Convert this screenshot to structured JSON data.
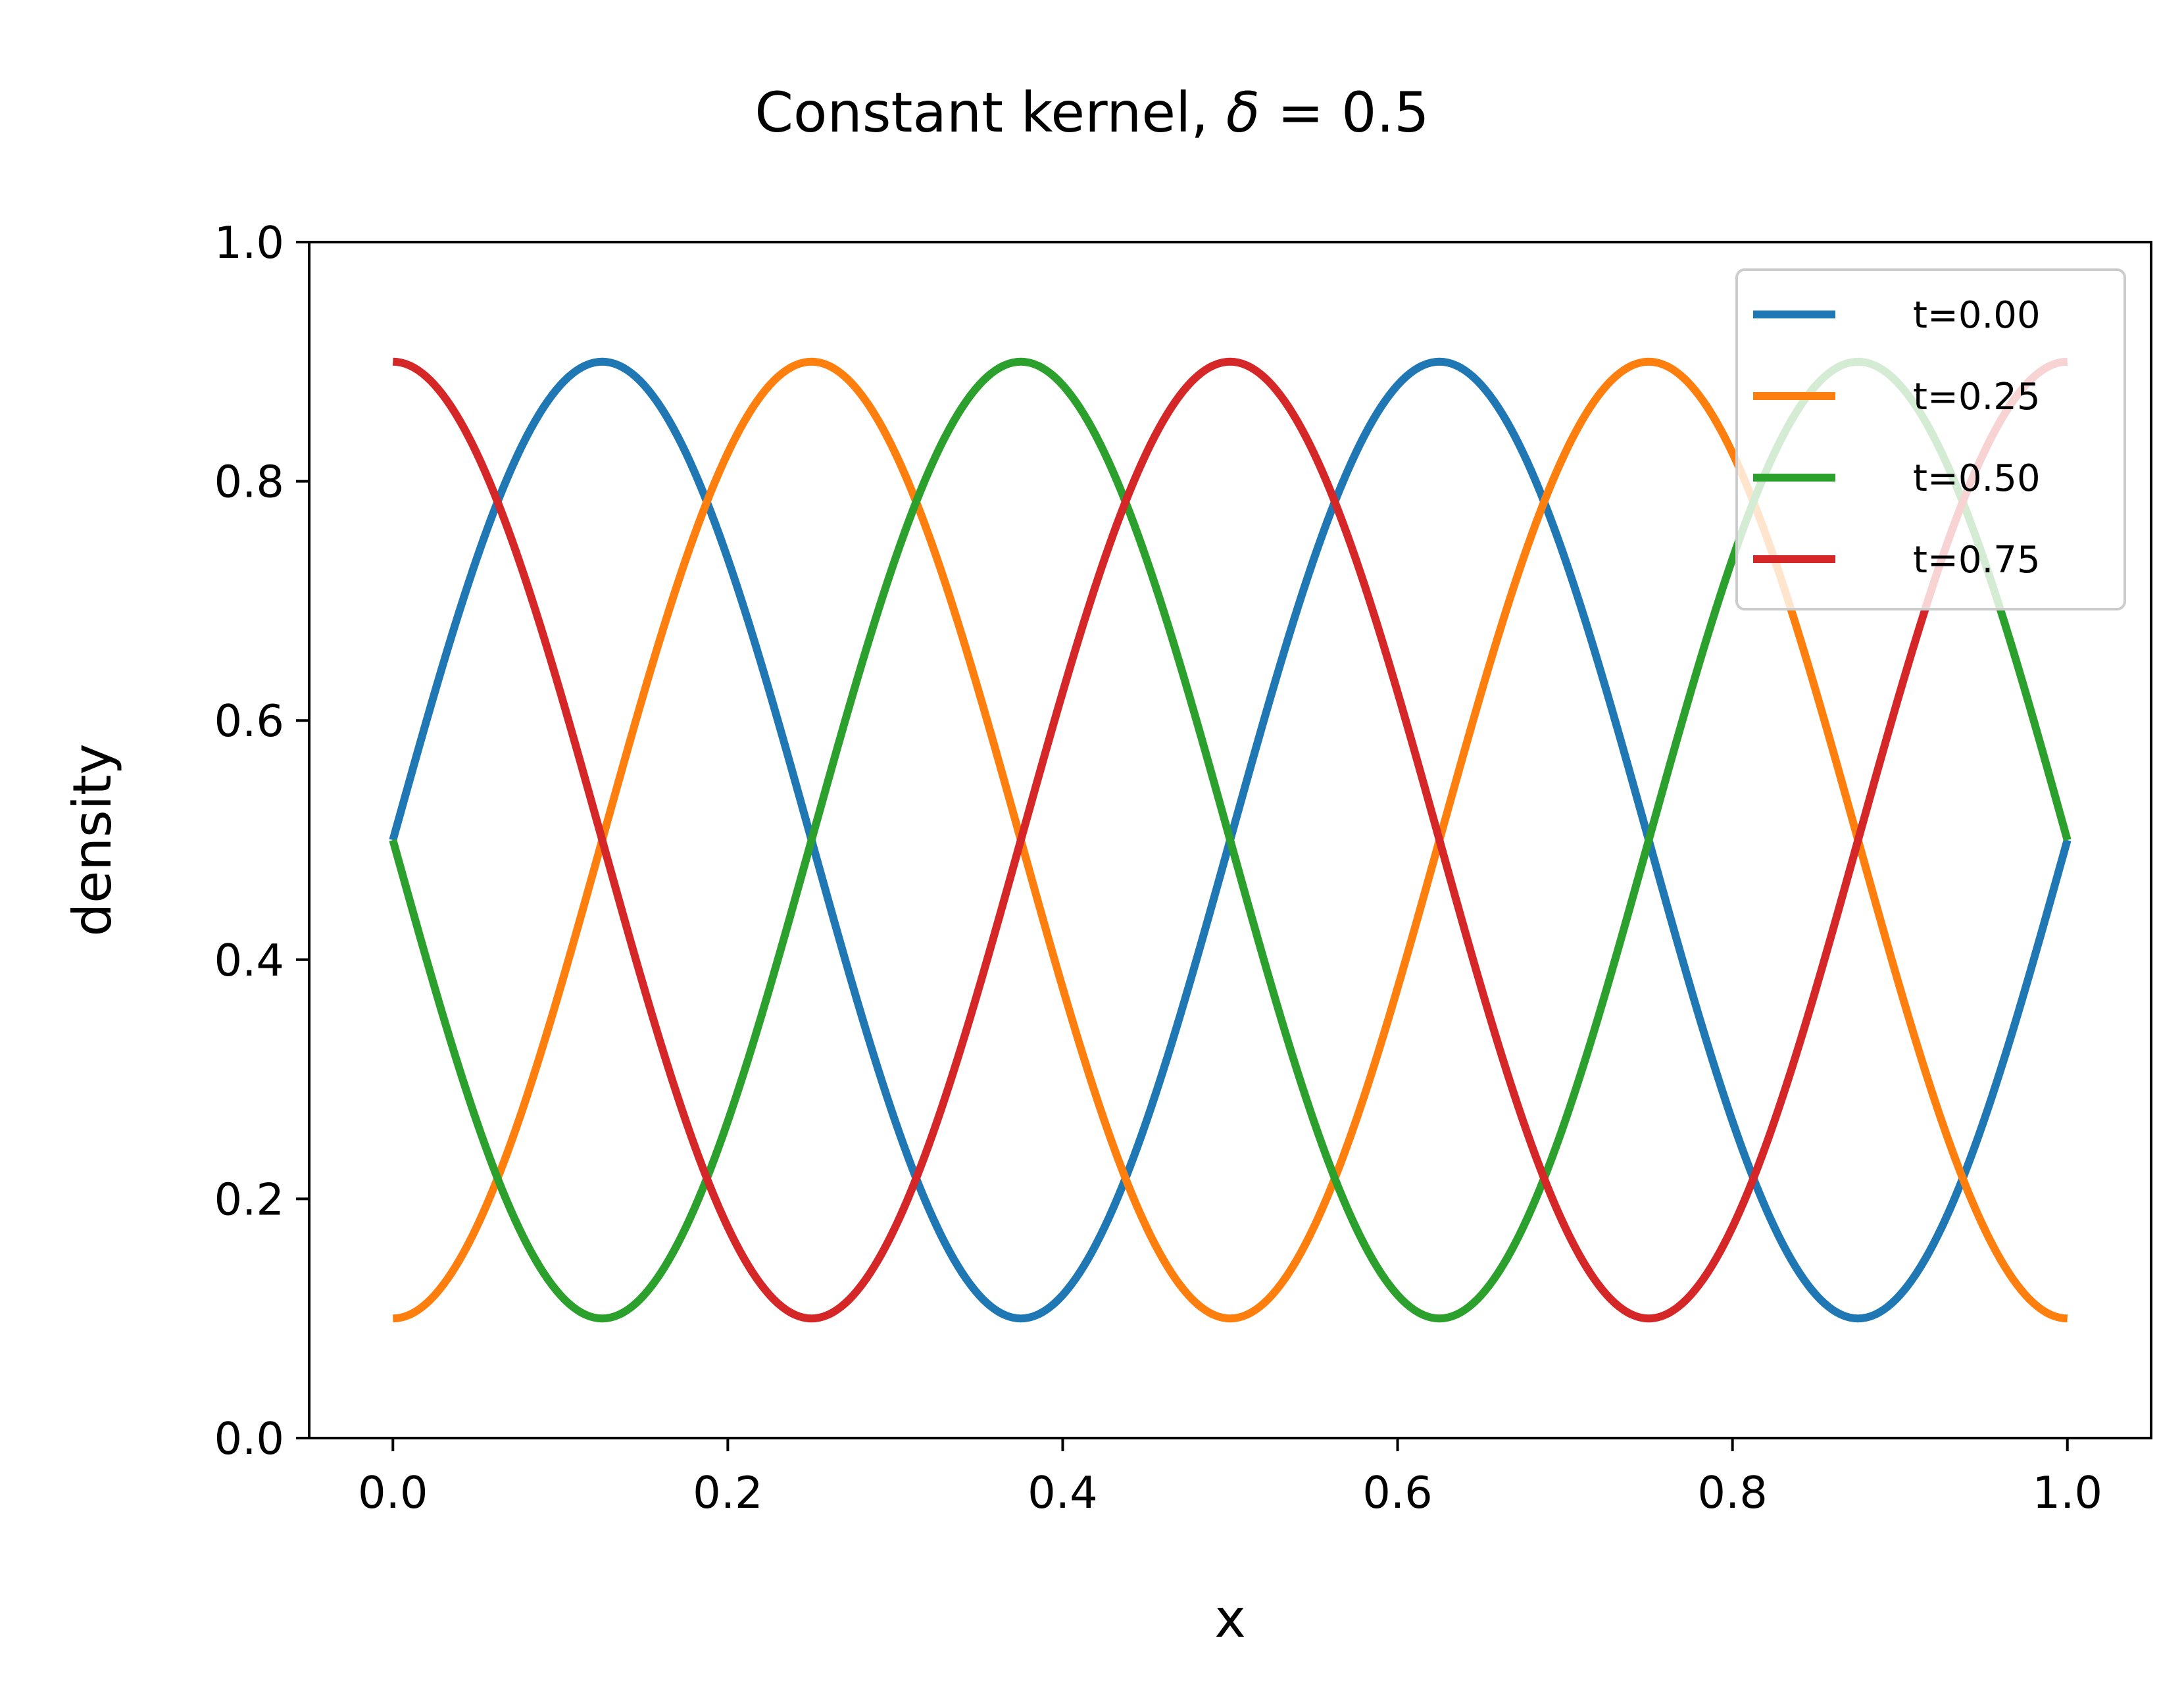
{
  "chart_data": {
    "type": "line",
    "title": "Constant kernel, δ = 0.5",
    "title_parts": {
      "prefix": "Constant kernel, ",
      "symbol": "δ",
      "suffix": " = 0.5"
    },
    "xlabel": "x",
    "ylabel": "density",
    "xlim": [
      -0.05,
      1.05
    ],
    "ylim": [
      0.0,
      1.0
    ],
    "xticks": [
      "0.0",
      "0.2",
      "0.4",
      "0.6",
      "0.8",
      "1.0"
    ],
    "yticks": [
      "0.0",
      "0.2",
      "0.4",
      "0.6",
      "0.8",
      "1.0"
    ],
    "grid": false,
    "legend_position": "top-right",
    "x_range": [
      0.0,
      1.0
    ],
    "series": [
      {
        "name": "t=0.00",
        "color": "#1f77b4",
        "function": "0.5 + 0.4*sin(4*pi*x)",
        "peaks_x": [
          0.125,
          0.625
        ],
        "troughs_x": [
          0.375,
          0.875
        ],
        "y_at_0": 0.5,
        "y_at_1": 0.5
      },
      {
        "name": "t=0.25",
        "color": "#ff7f0e",
        "function": "0.5 - 0.4*cos(4*pi*x)",
        "peaks_x": [
          0.25,
          0.75
        ],
        "troughs_x": [
          0.0,
          0.5,
          1.0
        ],
        "y_at_0": 0.1,
        "y_at_1": 0.1
      },
      {
        "name": "t=0.50",
        "color": "#2ca02c",
        "function": "0.5 - 0.4*sin(4*pi*x)",
        "peaks_x": [
          0.375,
          0.875
        ],
        "troughs_x": [
          0.125,
          0.625
        ],
        "y_at_0": 0.5,
        "y_at_1": 0.5
      },
      {
        "name": "t=0.75",
        "color": "#d62728",
        "function": "0.5 + 0.4*cos(4*pi*x)",
        "peaks_x": [
          0.0,
          0.5,
          1.0
        ],
        "troughs_x": [
          0.25,
          0.75
        ],
        "y_at_0": 0.9,
        "y_at_1": 0.9
      }
    ]
  }
}
